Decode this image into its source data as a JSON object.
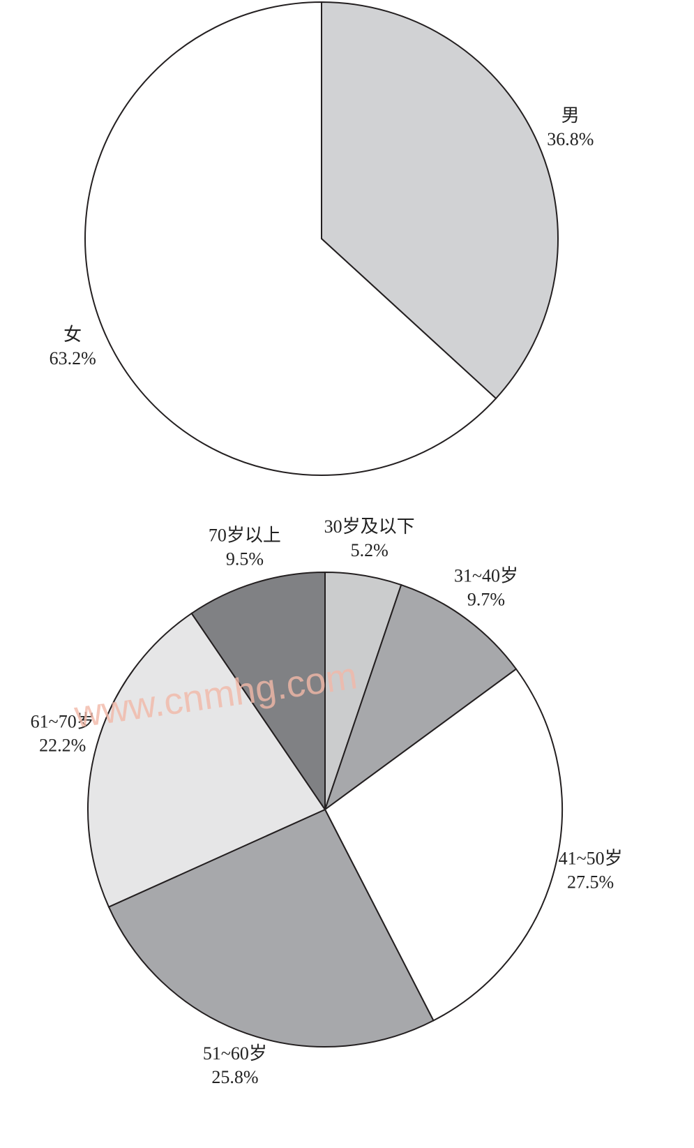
{
  "chart_data": [
    {
      "type": "pie",
      "categories": [
        "男",
        "女"
      ],
      "values": [
        36.8,
        63.2
      ],
      "value_labels": [
        "36.8%",
        "63.2%"
      ],
      "colors": [
        "#d1d2d4",
        "#ffffff"
      ]
    },
    {
      "type": "pie",
      "categories": [
        "30岁及以下",
        "31~40岁",
        "41~50岁",
        "51~60岁",
        "61~70岁",
        "70岁以上"
      ],
      "values": [
        5.2,
        9.7,
        27.5,
        25.8,
        22.2,
        9.5
      ],
      "value_labels": [
        "5.2%",
        "9.7%",
        "27.5%",
        "25.8%",
        "22.2%",
        "9.5%"
      ],
      "colors": [
        "#cbcccd",
        "#a7a8ab",
        "#ffffff",
        "#a7a8ab",
        "#e6e6e7",
        "#808184"
      ]
    }
  ],
  "watermark": "www.cnmhg.com"
}
